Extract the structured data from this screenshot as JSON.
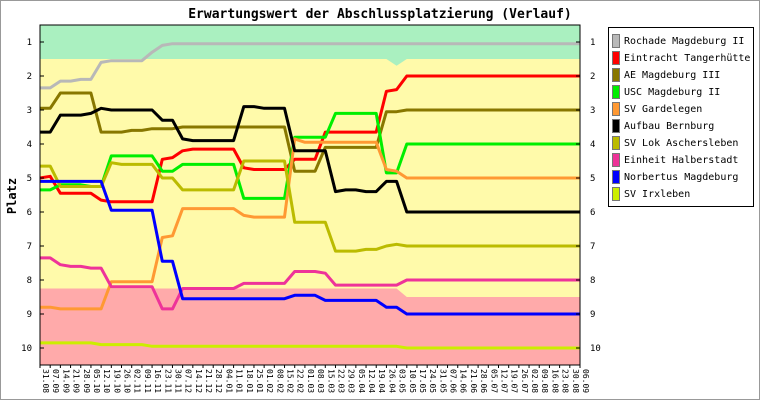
{
  "chart_data": {
    "type": "line",
    "title": "Erwartungswert der Abschlussplatzierung (Verlauf)",
    "ylabel": "Platz",
    "xlabel": "",
    "ylim": [
      10.5,
      0.5
    ],
    "y_ticks": [
      "1",
      "2",
      "3",
      "4",
      "5",
      "6",
      "7",
      "8",
      "9",
      "10"
    ],
    "categories": [
      "31.08",
      "07.09",
      "14.09",
      "21.09",
      "28.09",
      "05.10",
      "12.10",
      "19.10",
      "26.10",
      "02.11",
      "09.11",
      "16.11",
      "23.11",
      "30.11",
      "07.12",
      "14.12",
      "21.12",
      "28.12",
      "04.01",
      "11.01",
      "18.01",
      "25.01",
      "01.02",
      "08.02",
      "15.02",
      "22.02",
      "01.03",
      "08.03",
      "15.03",
      "22.03",
      "29.03",
      "05.04",
      "12.04",
      "19.04",
      "26.04",
      "03.05",
      "10.05",
      "17.05",
      "24.05",
      "31.05",
      "07.06",
      "14.06",
      "21.06",
      "28.06",
      "05.07",
      "12.07",
      "19.07",
      "26.07",
      "02.08",
      "09.08",
      "16.08",
      "23.08",
      "30.08",
      "06.09"
    ],
    "bands": [
      {
        "label": "zone-top",
        "from_place": 0.5,
        "color": "#aaf0c0",
        "to_values": [
          1.5,
          1.5,
          1.5,
          1.5,
          1.5,
          1.5,
          1.5,
          1.5,
          1.5,
          1.5,
          1.5,
          1.5,
          1.5,
          1.5,
          1.5,
          1.5,
          1.5,
          1.5,
          1.5,
          1.5,
          1.5,
          1.5,
          1.5,
          1.5,
          1.5,
          1.5,
          1.5,
          1.5,
          1.5,
          1.5,
          1.5,
          1.5,
          1.5,
          1.5,
          1.5,
          1.7,
          1.5,
          1.5,
          1.5,
          1.5,
          1.5,
          1.5,
          1.5,
          1.5,
          1.5,
          1.5,
          1.5,
          1.5,
          1.5,
          1.5,
          1.5,
          1.5,
          1.5,
          1.5
        ]
      },
      {
        "label": "zone-middle",
        "color": "#fffaaa"
      },
      {
        "label": "zone-bottom",
        "to_place": 10.5,
        "color": "#ffaaaa",
        "from_values": [
          8.25,
          8.25,
          8.25,
          8.25,
          8.25,
          8.25,
          8.25,
          8.25,
          8.25,
          8.25,
          8.25,
          8.25,
          8.25,
          8.25,
          8.25,
          8.25,
          8.25,
          8.25,
          8.25,
          8.25,
          8.25,
          8.25,
          8.25,
          8.25,
          8.25,
          8.25,
          8.25,
          8.25,
          8.25,
          8.25,
          8.25,
          8.25,
          8.25,
          8.25,
          8.25,
          8.25,
          8.5,
          8.5,
          8.5,
          8.5,
          8.5,
          8.5,
          8.5,
          8.5,
          8.5,
          8.5,
          8.5,
          8.5,
          8.5,
          8.5,
          8.5,
          8.5,
          8.5,
          8.5
        ]
      }
    ],
    "series": [
      {
        "name": "Rochade Magdeburg II",
        "color": "#b8b8b8",
        "values": [
          2.35,
          2.35,
          2.15,
          2.15,
          2.1,
          2.1,
          1.6,
          1.55,
          1.55,
          1.55,
          1.55,
          1.3,
          1.1,
          1.05,
          1.05,
          1.05,
          1.05,
          1.05,
          1.05,
          1.05,
          1.05,
          1.05,
          1.05,
          1.05,
          1.05,
          1.05,
          1.05,
          1.05,
          1.05,
          1.05,
          1.05,
          1.05,
          1.05,
          1.05,
          1.05,
          1.05,
          1.05,
          1.05,
          1.05,
          1.05,
          1.05,
          1.05,
          1.05,
          1.05,
          1.05,
          1.05,
          1.05,
          1.05,
          1.05,
          1.05,
          1.05,
          1.05,
          1.05,
          1.05
        ]
      },
      {
        "name": "Eintracht Tangerhütte",
        "color": "#ff0000",
        "values": [
          5.0,
          4.95,
          5.45,
          5.45,
          5.45,
          5.45,
          5.65,
          5.7,
          5.7,
          5.7,
          5.7,
          5.7,
          4.45,
          4.4,
          4.2,
          4.15,
          4.15,
          4.15,
          4.15,
          4.15,
          4.7,
          4.75,
          4.75,
          4.75,
          4.75,
          4.45,
          4.45,
          4.45,
          3.65,
          3.65,
          3.65,
          3.65,
          3.65,
          3.65,
          2.45,
          2.4,
          2.0,
          2.0,
          2.0,
          2.0,
          2.0,
          2.0,
          2.0,
          2.0,
          2.0,
          2.0,
          2.0,
          2.0,
          2.0,
          2.0,
          2.0,
          2.0,
          2.0,
          2.0
        ]
      },
      {
        "name": "AE Magdeburg III",
        "color": "#887700",
        "values": [
          2.95,
          2.95,
          2.5,
          2.5,
          2.5,
          2.5,
          3.65,
          3.65,
          3.65,
          3.6,
          3.6,
          3.55,
          3.55,
          3.55,
          3.5,
          3.5,
          3.5,
          3.5,
          3.5,
          3.5,
          3.5,
          3.5,
          3.5,
          3.5,
          3.5,
          4.8,
          4.8,
          4.8,
          4.1,
          4.1,
          4.1,
          4.1,
          4.1,
          4.1,
          3.05,
          3.05,
          3.0,
          3.0,
          3.0,
          3.0,
          3.0,
          3.0,
          3.0,
          3.0,
          3.0,
          3.0,
          3.0,
          3.0,
          3.0,
          3.0,
          3.0,
          3.0,
          3.0,
          3.0
        ]
      },
      {
        "name": "USC Magdeburg II",
        "color": "#00ee00",
        "values": [
          5.35,
          5.35,
          5.2,
          5.2,
          5.2,
          5.25,
          5.25,
          4.35,
          4.35,
          4.35,
          4.35,
          4.35,
          4.8,
          4.8,
          4.6,
          4.6,
          4.6,
          4.6,
          4.6,
          4.6,
          5.6,
          5.6,
          5.6,
          5.6,
          5.6,
          3.8,
          3.8,
          3.8,
          3.8,
          3.1,
          3.1,
          3.1,
          3.1,
          3.1,
          4.85,
          4.85,
          4.0,
          4.0,
          4.0,
          4.0,
          4.0,
          4.0,
          4.0,
          4.0,
          4.0,
          4.0,
          4.0,
          4.0,
          4.0,
          4.0,
          4.0,
          4.0,
          4.0,
          4.0
        ]
      },
      {
        "name": "SV Gardelegen",
        "color": "#ff9933",
        "values": [
          8.8,
          8.8,
          8.85,
          8.85,
          8.85,
          8.85,
          8.85,
          8.05,
          8.05,
          8.05,
          8.05,
          8.05,
          6.75,
          6.7,
          5.9,
          5.9,
          5.9,
          5.9,
          5.9,
          5.9,
          6.1,
          6.15,
          6.15,
          6.15,
          6.15,
          3.85,
          3.95,
          3.95,
          3.95,
          3.95,
          3.95,
          3.95,
          3.95,
          3.95,
          4.75,
          4.8,
          5.0,
          5.0,
          5.0,
          5.0,
          5.0,
          5.0,
          5.0,
          5.0,
          5.0,
          5.0,
          5.0,
          5.0,
          5.0,
          5.0,
          5.0,
          5.0,
          5.0,
          5.0
        ]
      },
      {
        "name": "Aufbau Bernburg",
        "color": "#000000",
        "values": [
          3.65,
          3.65,
          3.15,
          3.15,
          3.15,
          3.1,
          2.95,
          3.0,
          3.0,
          3.0,
          3.0,
          3.0,
          3.3,
          3.3,
          3.85,
          3.9,
          3.9,
          3.9,
          3.9,
          3.9,
          2.9,
          2.9,
          2.95,
          2.95,
          2.95,
          4.2,
          4.2,
          4.2,
          4.2,
          5.4,
          5.35,
          5.35,
          5.4,
          5.4,
          5.1,
          5.1,
          6.0,
          6.0,
          6.0,
          6.0,
          6.0,
          6.0,
          6.0,
          6.0,
          6.0,
          6.0,
          6.0,
          6.0,
          6.0,
          6.0,
          6.0,
          6.0,
          6.0,
          6.0
        ]
      },
      {
        "name": "SV Lok Aschersleben",
        "color": "#bbbb00",
        "values": [
          4.65,
          4.65,
          5.25,
          5.25,
          5.25,
          5.25,
          5.25,
          4.55,
          4.6,
          4.6,
          4.6,
          4.6,
          5.0,
          5.0,
          5.35,
          5.35,
          5.35,
          5.35,
          5.35,
          5.35,
          4.5,
          4.5,
          4.5,
          4.5,
          4.5,
          6.3,
          6.3,
          6.3,
          6.3,
          7.15,
          7.15,
          7.15,
          7.1,
          7.1,
          7.0,
          6.95,
          7.0,
          7.0,
          7.0,
          7.0,
          7.0,
          7.0,
          7.0,
          7.0,
          7.0,
          7.0,
          7.0,
          7.0,
          7.0,
          7.0,
          7.0,
          7.0,
          7.0,
          7.0
        ]
      },
      {
        "name": "Einheit Halberstadt",
        "color": "#ee3399",
        "values": [
          7.35,
          7.35,
          7.55,
          7.6,
          7.6,
          7.65,
          7.65,
          8.2,
          8.2,
          8.2,
          8.2,
          8.2,
          8.85,
          8.85,
          8.25,
          8.25,
          8.25,
          8.25,
          8.25,
          8.25,
          8.1,
          8.1,
          8.1,
          8.1,
          8.1,
          7.75,
          7.75,
          7.75,
          7.8,
          8.15,
          8.15,
          8.15,
          8.15,
          8.15,
          8.15,
          8.15,
          8.0,
          8.0,
          8.0,
          8.0,
          8.0,
          8.0,
          8.0,
          8.0,
          8.0,
          8.0,
          8.0,
          8.0,
          8.0,
          8.0,
          8.0,
          8.0,
          8.0,
          8.0
        ]
      },
      {
        "name": "Norbertus Magdeburg",
        "color": "#0000ff",
        "values": [
          5.1,
          5.1,
          5.1,
          5.1,
          5.1,
          5.1,
          5.1,
          5.95,
          5.95,
          5.95,
          5.95,
          5.95,
          7.45,
          7.45,
          8.55,
          8.55,
          8.55,
          8.55,
          8.55,
          8.55,
          8.55,
          8.55,
          8.55,
          8.55,
          8.55,
          8.45,
          8.45,
          8.45,
          8.6,
          8.6,
          8.6,
          8.6,
          8.6,
          8.6,
          8.8,
          8.8,
          9.0,
          9.0,
          9.0,
          9.0,
          9.0,
          9.0,
          9.0,
          9.0,
          9.0,
          9.0,
          9.0,
          9.0,
          9.0,
          9.0,
          9.0,
          9.0,
          9.0,
          9.0
        ]
      },
      {
        "name": "SV Irxleben",
        "color": "#ccee00",
        "values": [
          9.85,
          9.85,
          9.85,
          9.85,
          9.85,
          9.85,
          9.9,
          9.9,
          9.9,
          9.9,
          9.9,
          9.95,
          9.95,
          9.95,
          9.95,
          9.95,
          9.95,
          9.95,
          9.95,
          9.95,
          9.95,
          9.95,
          9.95,
          9.95,
          9.95,
          9.95,
          9.95,
          9.95,
          9.95,
          9.95,
          9.95,
          9.95,
          9.95,
          9.95,
          9.95,
          9.95,
          10.0,
          10.0,
          10.0,
          10.0,
          10.0,
          10.0,
          10.0,
          10.0,
          10.0,
          10.0,
          10.0,
          10.0,
          10.0,
          10.0,
          10.0,
          10.0,
          10.0,
          10.0
        ]
      }
    ],
    "legend_position": "right"
  }
}
